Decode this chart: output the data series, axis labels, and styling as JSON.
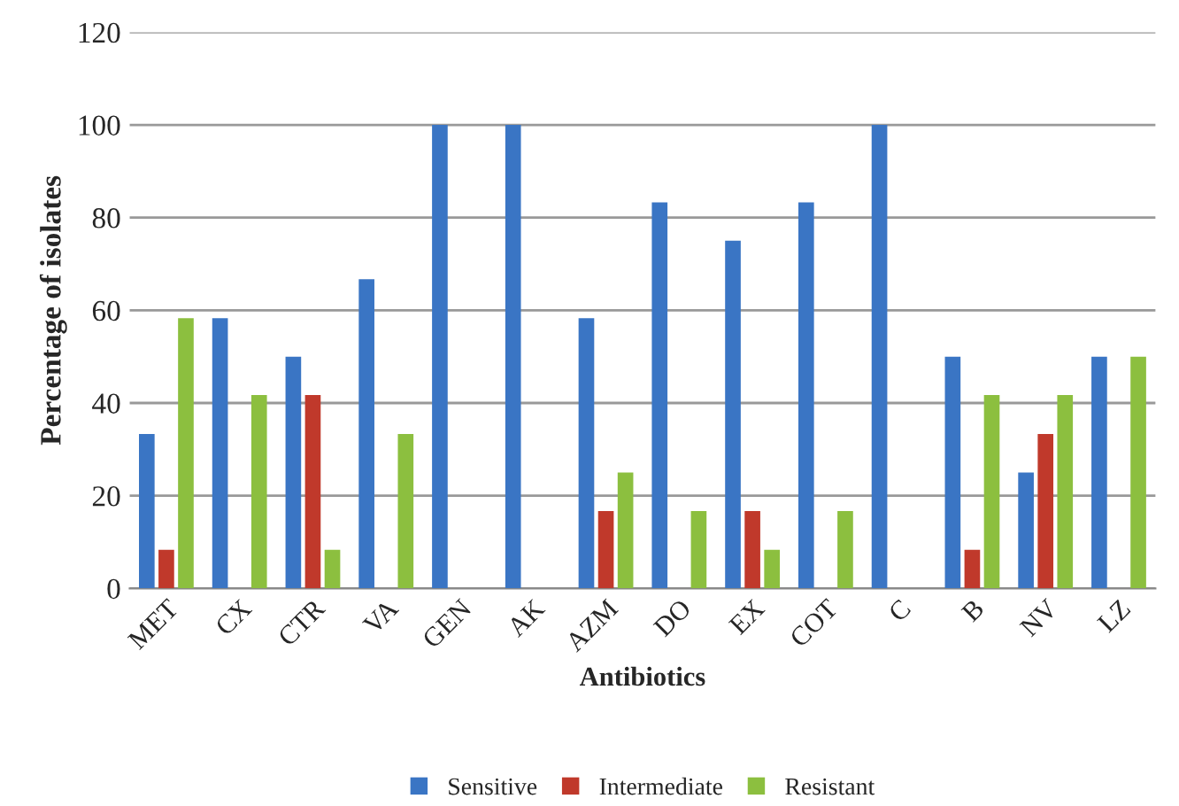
{
  "chart_data": {
    "type": "bar",
    "xlabel": "Antibiotics",
    "ylabel": "Percentage of isolates",
    "categories": [
      "MET",
      "CX",
      "CTR",
      "VA",
      "GEN",
      "AK",
      "AZM",
      "DO",
      "EX",
      "COT",
      "C",
      "B",
      "NV",
      "LZ"
    ],
    "series": [
      {
        "name": "Sensitive",
        "color": "#3a75c4",
        "values": [
          33.3,
          58.3,
          50,
          66.7,
          100,
          100,
          58.3,
          83.3,
          75,
          83.3,
          100,
          50,
          25,
          50
        ]
      },
      {
        "name": "Intermediate",
        "color": "#c0392b",
        "values": [
          8.3,
          null,
          41.7,
          null,
          null,
          null,
          16.7,
          null,
          16.7,
          null,
          null,
          8.3,
          33.3,
          null
        ]
      },
      {
        "name": "Resistant",
        "color": "#8cbf3f",
        "values": [
          58.3,
          41.7,
          8.3,
          33.3,
          null,
          null,
          25,
          16.7,
          8.3,
          16.7,
          null,
          41.7,
          41.7,
          50
        ]
      }
    ],
    "ylim": [
      0,
      120
    ],
    "yticks": [
      0,
      20,
      40,
      60,
      80,
      100,
      120
    ],
    "grid": "y",
    "legend": "bottom"
  }
}
